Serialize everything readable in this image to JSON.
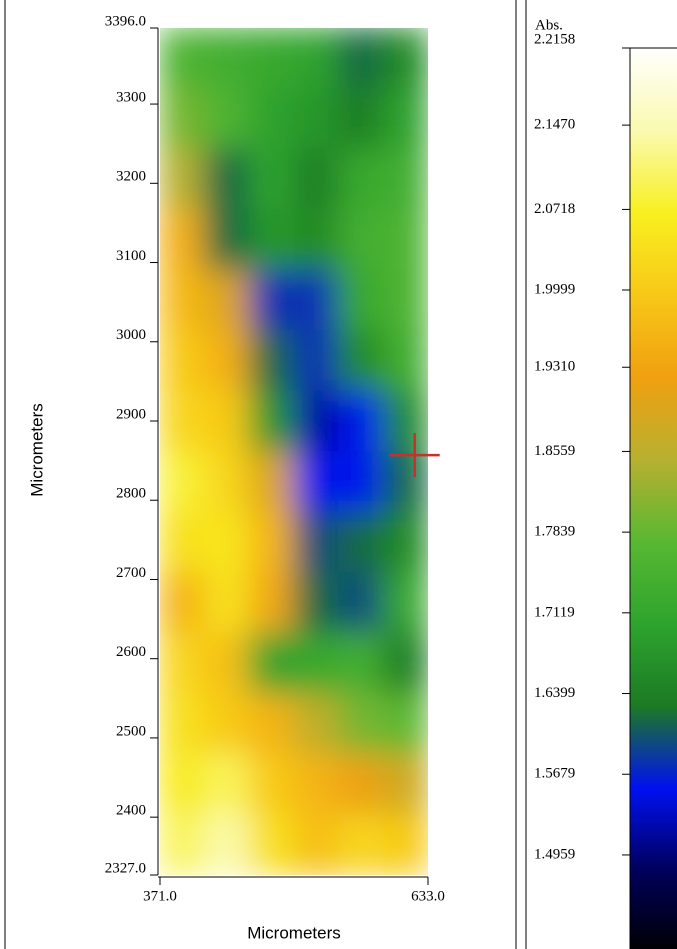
{
  "chart_data": {
    "type": "heatmap",
    "xlabel": "Micrometers",
    "ylabel": "Micrometers",
    "xlim": [
      371,
      633
    ],
    "xticks": [
      {
        "value": 371,
        "label": "371.0"
      },
      {
        "value": 633,
        "label": "633.0"
      }
    ],
    "ylim": [
      2327,
      3396
    ],
    "yticks": [
      {
        "value": 2327,
        "label": "2327.0"
      },
      2400,
      2500,
      2600,
      2700,
      2800,
      2900,
      3000,
      3100,
      3200,
      3300,
      {
        "value": 3396,
        "label": "3396.0"
      }
    ],
    "values": [
      [
        1.76,
        1.74,
        1.72,
        1.7,
        1.62,
        1.66
      ],
      [
        1.8,
        1.76,
        1.7,
        1.68,
        1.64,
        1.7
      ],
      [
        1.85,
        1.62,
        1.7,
        1.64,
        1.72,
        1.74
      ],
      [
        1.95,
        1.62,
        1.68,
        1.66,
        1.74,
        1.76
      ],
      [
        1.97,
        1.9,
        1.58,
        1.58,
        1.72,
        1.76
      ],
      [
        2.0,
        1.95,
        1.62,
        1.58,
        1.66,
        1.74
      ],
      [
        2.02,
        2.0,
        1.68,
        1.52,
        1.56,
        1.66
      ],
      [
        2.08,
        2.02,
        1.9,
        1.56,
        1.56,
        1.62
      ],
      [
        2.04,
        2.05,
        1.96,
        1.6,
        1.62,
        1.66
      ],
      [
        1.96,
        2.04,
        1.94,
        1.62,
        1.6,
        1.72
      ],
      [
        2.02,
        1.98,
        1.7,
        1.72,
        1.74,
        1.64
      ],
      [
        2.04,
        2.0,
        1.96,
        1.86,
        1.8,
        1.78
      ],
      [
        2.06,
        2.1,
        2.0,
        1.96,
        1.92,
        1.88
      ],
      [
        2.1,
        2.14,
        2.04,
        1.98,
        2.02,
        2.0
      ]
    ],
    "colorbar_label": "Abs.",
    "clim": [
      1.412,
      2.2158
    ],
    "cticks": [
      2.2158,
      {
        "value": 2.147,
        "label": "2.1470"
      },
      2.0718,
      1.9999,
      {
        "value": 1.931,
        "label": "1.9310"
      },
      1.8559,
      1.7839,
      1.7119,
      1.6399,
      1.5679,
      1.4959
    ],
    "colormap": [
      "#000000",
      "#00005a",
      "#0010f0",
      "#1c7a24",
      "#2ea42e",
      "#58b832",
      "#b8b030",
      "#f0a010",
      "#f8c818",
      "#f8f020",
      "#fafab0",
      "#ffffff"
    ],
    "marker": {
      "x": 620,
      "y": 2857,
      "color": "#c8302a"
    }
  }
}
